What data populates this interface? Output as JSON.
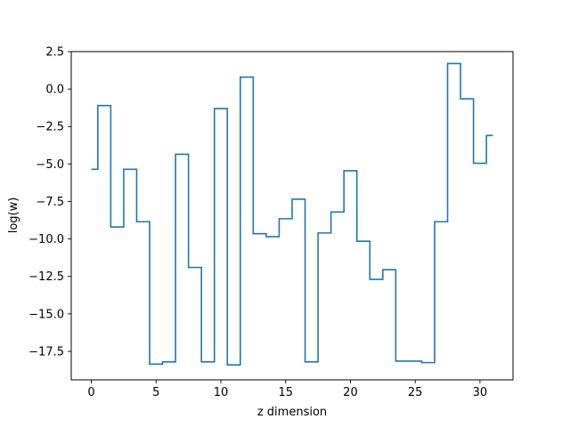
{
  "chart_data": {
    "type": "line",
    "drawstyle": "steps-mid",
    "title": "",
    "xlabel": "z dimension",
    "ylabel": "log(w)",
    "xlim": [
      -1.55,
      32.55
    ],
    "ylim": [
      -19.4,
      2.5
    ],
    "xticks": [
      0,
      5,
      10,
      15,
      20,
      25,
      30
    ],
    "xtick_labels": [
      "0",
      "5",
      "10",
      "15",
      "20",
      "25",
      "30"
    ],
    "yticks": [
      2.5,
      0.0,
      -2.5,
      -5.0,
      -7.5,
      -10.0,
      -12.5,
      -15.0,
      -17.5
    ],
    "ytick_labels": [
      "2.5",
      "0.0",
      "−2.5",
      "−5.0",
      "−7.5",
      "−10.0",
      "−12.5",
      "−15.0",
      "−17.5"
    ],
    "grid": false,
    "series": [
      {
        "color": "#1f77b4",
        "x": [
          0,
          1,
          2,
          3,
          4,
          5,
          6,
          7,
          8,
          9,
          10,
          11,
          12,
          13,
          14,
          15,
          16,
          17,
          18,
          19,
          20,
          21,
          22,
          23,
          24,
          25,
          26,
          27,
          28,
          29,
          30,
          31
        ],
        "values": [
          -5.35,
          -1.1,
          -9.2,
          -5.35,
          -8.85,
          -18.35,
          -18.2,
          -4.35,
          -11.9,
          -18.2,
          -1.3,
          -18.4,
          0.8,
          -9.65,
          -9.85,
          -8.65,
          -7.35,
          -18.2,
          -9.6,
          -8.2,
          -5.45,
          -10.15,
          -12.7,
          -12.05,
          -18.15,
          -18.15,
          -18.25,
          -8.85,
          1.7,
          -0.65,
          -4.95,
          -3.1
        ]
      }
    ]
  }
}
